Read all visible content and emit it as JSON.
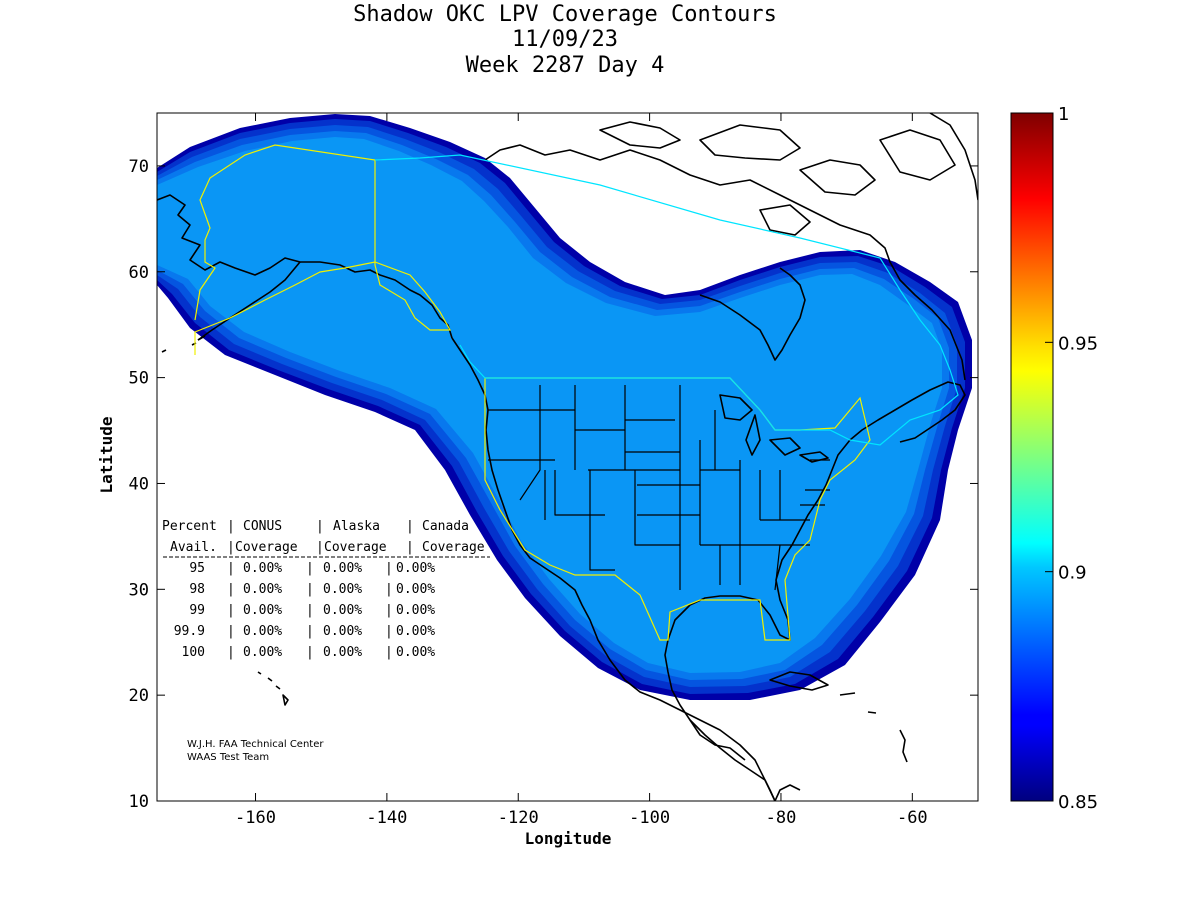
{
  "title": {
    "line1": "Shadow OKC LPV Coverage Contours",
    "line2": "11/09/23",
    "line3": "Week 2287 Day 4"
  },
  "axes": {
    "xlabel": "Longitude",
    "ylabel": "Latitude",
    "x_range": [
      -175,
      -50
    ],
    "y_range": [
      10,
      75
    ],
    "x_ticks": [
      -160,
      -140,
      -120,
      -100,
      -80,
      -60
    ],
    "y_ticks": [
      10,
      20,
      30,
      40,
      50,
      60,
      70
    ]
  },
  "colorbar": {
    "range": [
      0.85,
      1
    ],
    "ticks": [
      "0.85",
      "0.9",
      "0.95",
      "1"
    ],
    "colormap": "jet"
  },
  "coverage_table": {
    "headers": [
      "Percent",
      "CONUS",
      "Alaska",
      "Canada"
    ],
    "subheaders": [
      "Avail.",
      "Coverage",
      "Coverage",
      "Coverage"
    ],
    "rows": [
      {
        "avail": "95",
        "conus": "0.00%",
        "alaska": "0.00%",
        "canada": "0.00%"
      },
      {
        "avail": "98",
        "conus": "0.00%",
        "alaska": "0.00%",
        "canada": "0.00%"
      },
      {
        "avail": "99",
        "conus": "0.00%",
        "alaska": "0.00%",
        "canada": "0.00%"
      },
      {
        "avail": "99.9",
        "conus": "0.00%",
        "alaska": "0.00%",
        "canada": "0.00%"
      },
      {
        "avail": "100",
        "conus": "0.00%",
        "alaska": "0.00%",
        "canada": "0.00%"
      }
    ]
  },
  "credits": {
    "line1": "W.J.H. FAA Technical Center",
    "line2": "WAAS Test Team"
  },
  "colors": {
    "inner_fill": "#0a96f5",
    "band_1": "#0878ee",
    "band_2": "#0555e0",
    "band_3": "#0432cc",
    "outer_band": "#0000a8",
    "conus_outline": "#f0f000",
    "canada_outline": "#00e5ff",
    "coastline": "#000000"
  }
}
